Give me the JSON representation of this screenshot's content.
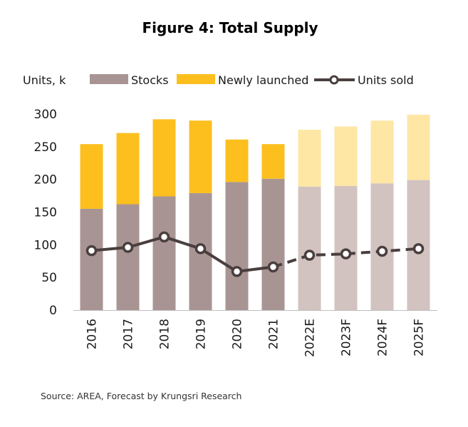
{
  "chart_data": {
    "type": "bar",
    "title": "Figure 4: Total Supply",
    "ylabel": "Units, k",
    "xlabel": "",
    "ylim": [
      0,
      300
    ],
    "yticks": [
      0,
      50,
      100,
      150,
      200,
      250,
      300
    ],
    "categories": [
      "2016",
      "2017",
      "2018",
      "2019",
      "2020",
      "2021",
      "2022E",
      "2023F",
      "2024F",
      "2025F"
    ],
    "forecast_from_index": 6,
    "legend_position": "top",
    "grid": false,
    "series": [
      {
        "name": "Stocks",
        "kind": "stacked-bar",
        "color": "#a89593",
        "forecast_color": "#d2c3c1",
        "values": [
          155,
          162,
          174,
          179,
          196,
          201,
          189,
          190,
          194,
          199
        ]
      },
      {
        "name": "Newly launched",
        "kind": "stacked-bar",
        "color": "#fcbf1e",
        "forecast_color": "#fee6a5",
        "values": [
          99,
          109,
          118,
          111,
          65,
          53,
          87,
          91,
          96,
          100
        ]
      },
      {
        "name": "Units sold",
        "kind": "line",
        "color": "#4a3e3e",
        "values": [
          91,
          96,
          112,
          94,
          59,
          66,
          84,
          86,
          90,
          94
        ]
      }
    ],
    "source": "Source: AREA, Forecast by Krungsri Research"
  }
}
